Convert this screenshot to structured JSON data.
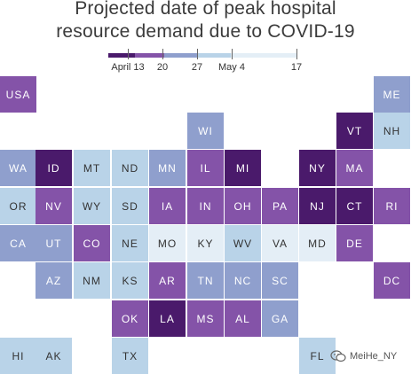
{
  "title": {
    "line1": "Projected date of peak hospital",
    "line2": "resource demand due to COVID-19"
  },
  "legend": {
    "labels": [
      {
        "text": "April 13",
        "key": "apr13"
      },
      {
        "text": "20",
        "key": "apr20"
      },
      {
        "text": "27",
        "key": "apr27"
      },
      {
        "text": "May 4",
        "key": "may4"
      },
      {
        "text": "17",
        "key": "may17"
      }
    ],
    "colors": [
      "#4a1a6b",
      "#8453a8",
      "#8f9fcd",
      "#b9d3e8",
      "#e4eef6"
    ]
  },
  "colors": {
    "dark": "#4a1a6b",
    "mid": "#8453a8",
    "blue": "#8f9fcd",
    "light": "#b9d3e8",
    "pale": "#e4eef6"
  },
  "tiles": [
    {
      "state": "USA",
      "row": 0,
      "col": 0,
      "shade": "mid"
    },
    {
      "state": "ME",
      "row": 0,
      "col": 10,
      "shade": "blue"
    },
    {
      "state": "WI",
      "row": 1,
      "col": 5,
      "shade": "blue"
    },
    {
      "state": "VT",
      "row": 1,
      "col": 9,
      "shade": "dark"
    },
    {
      "state": "NH",
      "row": 1,
      "col": 10,
      "shade": "light"
    },
    {
      "state": "WA",
      "row": 2,
      "col": 0,
      "shade": "blue"
    },
    {
      "state": "ID",
      "row": 2,
      "col": 1,
      "shade": "dark"
    },
    {
      "state": "MT",
      "row": 2,
      "col": 2,
      "shade": "light"
    },
    {
      "state": "ND",
      "row": 2,
      "col": 3,
      "shade": "light"
    },
    {
      "state": "MN",
      "row": 2,
      "col": 4,
      "shade": "blue"
    },
    {
      "state": "IL",
      "row": 2,
      "col": 5,
      "shade": "mid"
    },
    {
      "state": "MI",
      "row": 2,
      "col": 6,
      "shade": "dark"
    },
    {
      "state": "NY",
      "row": 2,
      "col": 8,
      "shade": "dark"
    },
    {
      "state": "MA",
      "row": 2,
      "col": 9,
      "shade": "mid"
    },
    {
      "state": "OR",
      "row": 3,
      "col": 0,
      "shade": "light"
    },
    {
      "state": "NV",
      "row": 3,
      "col": 1,
      "shade": "mid"
    },
    {
      "state": "WY",
      "row": 3,
      "col": 2,
      "shade": "light"
    },
    {
      "state": "SD",
      "row": 3,
      "col": 3,
      "shade": "light"
    },
    {
      "state": "IA",
      "row": 3,
      "col": 4,
      "shade": "mid"
    },
    {
      "state": "IN",
      "row": 3,
      "col": 5,
      "shade": "mid"
    },
    {
      "state": "OH",
      "row": 3,
      "col": 6,
      "shade": "mid"
    },
    {
      "state": "PA",
      "row": 3,
      "col": 7,
      "shade": "mid"
    },
    {
      "state": "NJ",
      "row": 3,
      "col": 8,
      "shade": "dark"
    },
    {
      "state": "CT",
      "row": 3,
      "col": 9,
      "shade": "dark"
    },
    {
      "state": "RI",
      "row": 3,
      "col": 10,
      "shade": "mid"
    },
    {
      "state": "CA",
      "row": 4,
      "col": 0,
      "shade": "blue"
    },
    {
      "state": "UT",
      "row": 4,
      "col": 1,
      "shade": "blue"
    },
    {
      "state": "CO",
      "row": 4,
      "col": 2,
      "shade": "mid"
    },
    {
      "state": "NE",
      "row": 4,
      "col": 3,
      "shade": "light"
    },
    {
      "state": "MO",
      "row": 4,
      "col": 4,
      "shade": "pale"
    },
    {
      "state": "KY",
      "row": 4,
      "col": 5,
      "shade": "pale"
    },
    {
      "state": "WV",
      "row": 4,
      "col": 6,
      "shade": "light"
    },
    {
      "state": "VA",
      "row": 4,
      "col": 7,
      "shade": "pale"
    },
    {
      "state": "MD",
      "row": 4,
      "col": 8,
      "shade": "pale"
    },
    {
      "state": "DE",
      "row": 4,
      "col": 9,
      "shade": "mid"
    },
    {
      "state": "AZ",
      "row": 5,
      "col": 1,
      "shade": "blue"
    },
    {
      "state": "NM",
      "row": 5,
      "col": 2,
      "shade": "light"
    },
    {
      "state": "KS",
      "row": 5,
      "col": 3,
      "shade": "light"
    },
    {
      "state": "AR",
      "row": 5,
      "col": 4,
      "shade": "mid"
    },
    {
      "state": "TN",
      "row": 5,
      "col": 5,
      "shade": "blue"
    },
    {
      "state": "NC",
      "row": 5,
      "col": 6,
      "shade": "blue"
    },
    {
      "state": "SC",
      "row": 5,
      "col": 7,
      "shade": "blue"
    },
    {
      "state": "DC",
      "row": 5,
      "col": 10,
      "shade": "mid"
    },
    {
      "state": "OK",
      "row": 6,
      "col": 3,
      "shade": "mid"
    },
    {
      "state": "LA",
      "row": 6,
      "col": 4,
      "shade": "dark"
    },
    {
      "state": "MS",
      "row": 6,
      "col": 5,
      "shade": "mid"
    },
    {
      "state": "AL",
      "row": 6,
      "col": 6,
      "shade": "mid"
    },
    {
      "state": "GA",
      "row": 6,
      "col": 7,
      "shade": "blue"
    },
    {
      "state": "HI",
      "row": 7,
      "col": 0,
      "shade": "light"
    },
    {
      "state": "AK",
      "row": 7,
      "col": 1,
      "shade": "light"
    },
    {
      "state": "TX",
      "row": 7,
      "col": 3,
      "shade": "light"
    },
    {
      "state": "FL",
      "row": 7,
      "col": 8,
      "shade": "light"
    }
  ],
  "watermark": {
    "text": "MeiHe_NY",
    "icon": "wechat-icon"
  }
}
